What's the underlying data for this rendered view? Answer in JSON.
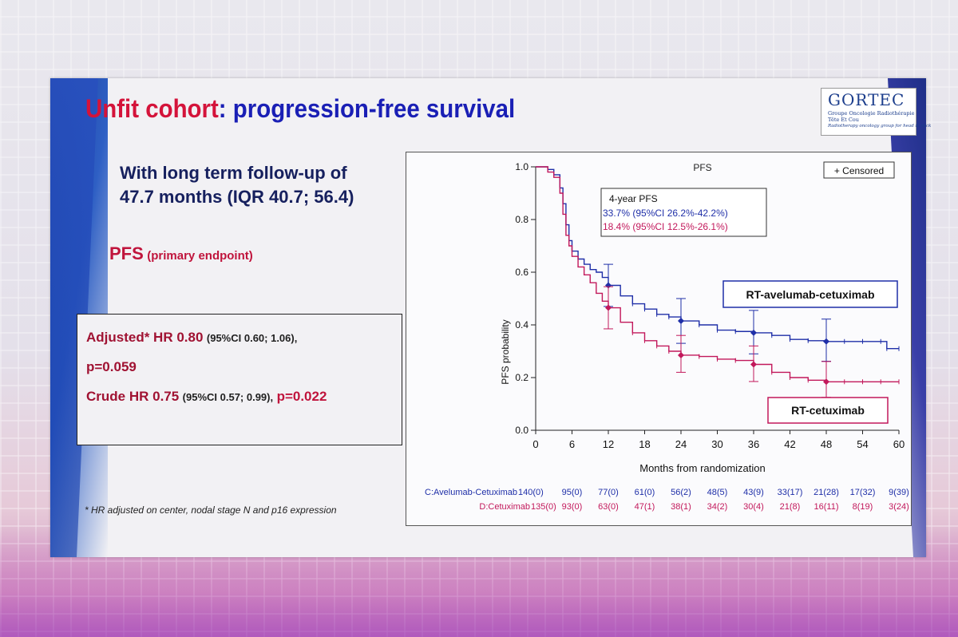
{
  "slide": {
    "title_part1": "Unfit cohort",
    "title_part2": ": progression-free survival",
    "logo": {
      "name": "GORTEC",
      "line1": "Groupe Oncologie Radiothérapie",
      "line2": "Tête Et Cou",
      "line3": "Radiotherapy oncology group for head & neck"
    },
    "followup_line1": "With long term follow-up of",
    "followup_line2": "47.7 months (IQR 40.7; 56.4)",
    "pfs_label": "PFS",
    "pfs_sub": "(primary endpoint)",
    "hr": {
      "adj_label": "Adjusted* HR 0.80",
      "adj_ci": "(95%CI 0.60; 1.06),",
      "adj_p": "p=0.059",
      "crude_label": "Crude HR 0.75",
      "crude_ci": "(95%CI 0.57; 0.99),",
      "crude_p": "p=0.022"
    },
    "footnote": "* HR adjusted on center, nodal stage N and p16 expression",
    "colors": {
      "red": "#d4133a",
      "blue": "#1a1fb5",
      "series_blue": "#1f2fa8",
      "series_red": "#c2185b"
    }
  },
  "chart_data": {
    "type": "line",
    "title": "PFS",
    "xlabel": "Months from randomization",
    "ylabel": "PFS probability",
    "xlim": [
      0,
      60
    ],
    "ylim": [
      0.0,
      1.0
    ],
    "xticks": [
      "0",
      "6",
      "12",
      "18",
      "24",
      "30",
      "36",
      "42",
      "48",
      "54",
      "60"
    ],
    "yticks": [
      "0.0",
      "0.2",
      "0.4",
      "0.6",
      "0.8",
      "1.0"
    ],
    "legend": "+ Censored",
    "annotation": {
      "title": "4-year PFS",
      "line1": "33.7% (95%CI 26.2%-42.2%)",
      "line2": "18.4% (95%CI 12.5%-26.1%)"
    },
    "series": [
      {
        "name": "RT-avelumab-cetuximab",
        "x": [
          0,
          1,
          2,
          3,
          4,
          4.5,
          5,
          5.5,
          6,
          7,
          8,
          9,
          10,
          11,
          12,
          14,
          16,
          18,
          20,
          22,
          24,
          27,
          30,
          33,
          36,
          39,
          42,
          45,
          48,
          51,
          54,
          57,
          58,
          60
        ],
        "y": [
          1.0,
          1.0,
          0.99,
          0.97,
          0.92,
          0.86,
          0.78,
          0.72,
          0.68,
          0.65,
          0.63,
          0.61,
          0.6,
          0.58,
          0.55,
          0.51,
          0.48,
          0.46,
          0.44,
          0.43,
          0.415,
          0.4,
          0.38,
          0.375,
          0.37,
          0.36,
          0.345,
          0.34,
          0.337,
          0.337,
          0.337,
          0.337,
          0.31,
          0.31
        ],
        "ci_markers": [
          {
            "x": 12,
            "y": 0.55,
            "lo": 0.47,
            "hi": 0.63
          },
          {
            "x": 24,
            "y": 0.415,
            "lo": 0.33,
            "hi": 0.5
          },
          {
            "x": 36,
            "y": 0.37,
            "lo": 0.29,
            "hi": 0.455
          },
          {
            "x": 48,
            "y": 0.337,
            "lo": 0.262,
            "hi": 0.422
          }
        ]
      },
      {
        "name": "RT-cetuximab",
        "x": [
          0,
          1,
          2,
          3,
          4,
          4.5,
          5,
          5.5,
          6,
          7,
          8,
          9,
          10,
          11,
          12,
          14,
          16,
          18,
          20,
          22,
          24,
          27,
          30,
          33,
          36,
          39,
          42,
          45,
          48,
          51,
          54,
          57,
          60
        ],
        "y": [
          1.0,
          1.0,
          0.98,
          0.96,
          0.9,
          0.82,
          0.74,
          0.7,
          0.66,
          0.62,
          0.59,
          0.56,
          0.52,
          0.49,
          0.465,
          0.41,
          0.37,
          0.34,
          0.32,
          0.3,
          0.285,
          0.28,
          0.27,
          0.265,
          0.25,
          0.22,
          0.2,
          0.19,
          0.184,
          0.184,
          0.184,
          0.184,
          0.184
        ],
        "ci_markers": [
          {
            "x": 12,
            "y": 0.465,
            "lo": 0.385,
            "hi": 0.545
          },
          {
            "x": 24,
            "y": 0.285,
            "lo": 0.22,
            "hi": 0.36
          },
          {
            "x": 36,
            "y": 0.25,
            "lo": 0.185,
            "hi": 0.32
          },
          {
            "x": 48,
            "y": 0.184,
            "lo": 0.125,
            "hi": 0.261
          }
        ]
      }
    ],
    "risk_table": [
      {
        "label": "C:Avelumab-Cetuximab",
        "values": [
          "140(0)",
          "95(0)",
          "77(0)",
          "61(0)",
          "56(2)",
          "48(5)",
          "43(9)",
          "33(17)",
          "21(28)",
          "17(32)",
          "9(39)"
        ]
      },
      {
        "label": "D:Cetuximab",
        "values": [
          "135(0)",
          "93(0)",
          "63(0)",
          "47(1)",
          "38(1)",
          "34(2)",
          "30(4)",
          "21(8)",
          "16(11)",
          "8(19)",
          "3(24)"
        ]
      }
    ]
  }
}
